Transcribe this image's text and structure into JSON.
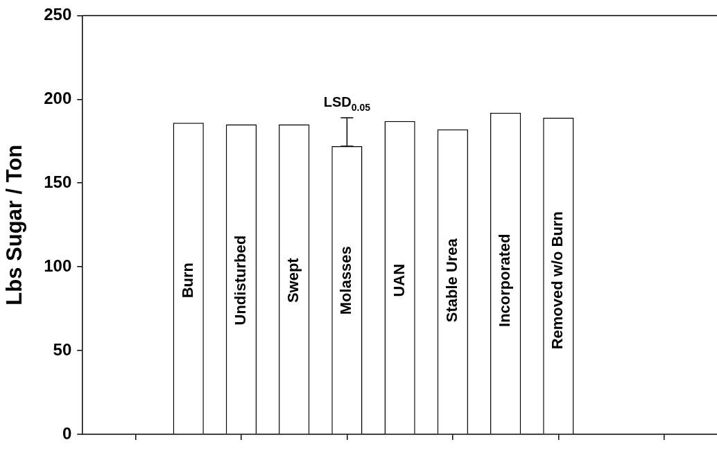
{
  "chart_data": {
    "type": "bar",
    "ylabel": "Lbs Sugar / Ton",
    "categories": [
      "Burn",
      "Undisturbed",
      "Swept",
      "Molasses",
      "UAN",
      "Stable Urea",
      "Incorporated",
      "Removed w/o Burn"
    ],
    "values": [
      186,
      185,
      185,
      172,
      187,
      182,
      192,
      189
    ],
    "errors": [
      null,
      null,
      null,
      [
        172,
        189
      ],
      null,
      null,
      null,
      null
    ],
    "color": "#ffffff",
    "ylim": [
      0,
      250
    ],
    "yticks": [
      0,
      50,
      100,
      150,
      200,
      250
    ],
    "annotations": [
      {
        "text": "LSD$_{0.05}$",
        "x": "Molasses",
        "y": 189
      }
    ],
    "grid": false,
    "legend": false
  }
}
